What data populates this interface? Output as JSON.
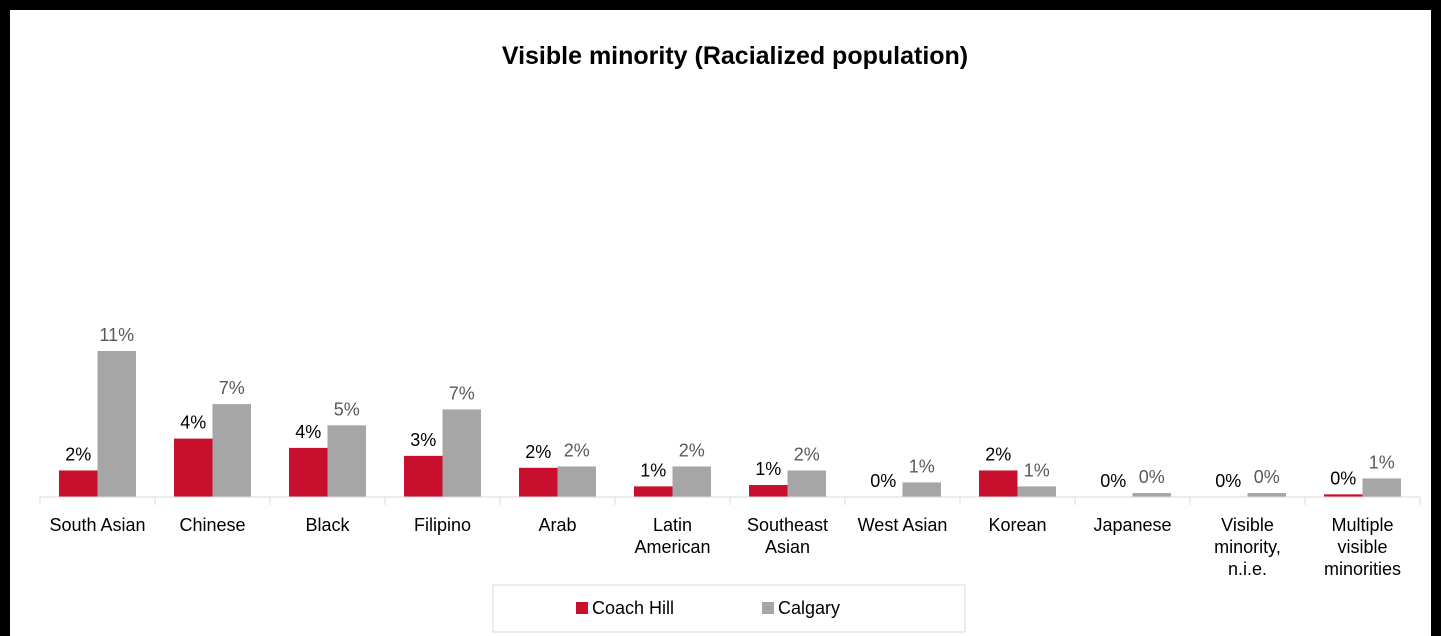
{
  "chart_data": {
    "type": "bar",
    "title": "Visible minority (Racialized population)",
    "categories": [
      "South Asian",
      "Chinese",
      "Black",
      "Filipino",
      "Arab",
      "Latin American",
      "Southeast Asian",
      "West Asian",
      "Korean",
      "Japanese",
      "Visible minority, n.i.e.",
      "Multiple visible minorities"
    ],
    "series": [
      {
        "name": "Coach Hill",
        "color": "#c8102e",
        "values": [
          2.0,
          4.4,
          3.7,
          3.1,
          2.2,
          0.8,
          0.9,
          0,
          2.0,
          0,
          0,
          0.2
        ],
        "value_labels": [
          "2%",
          "4%",
          "4%",
          "3%",
          "2%",
          "1%",
          "1%",
          "0%",
          "2%",
          "0%",
          "0%",
          "0%"
        ]
      },
      {
        "name": "Calgary",
        "color": "#a6a6a6",
        "values": [
          11.0,
          7.0,
          5.4,
          6.6,
          2.3,
          2.3,
          2.0,
          1.1,
          0.8,
          0.3,
          0.3,
          1.4
        ],
        "value_labels": [
          "11%",
          "7%",
          "5%",
          "7%",
          "2%",
          "2%",
          "2%",
          "1%",
          "1%",
          "0%",
          "0%",
          "1%"
        ]
      }
    ]
  }
}
